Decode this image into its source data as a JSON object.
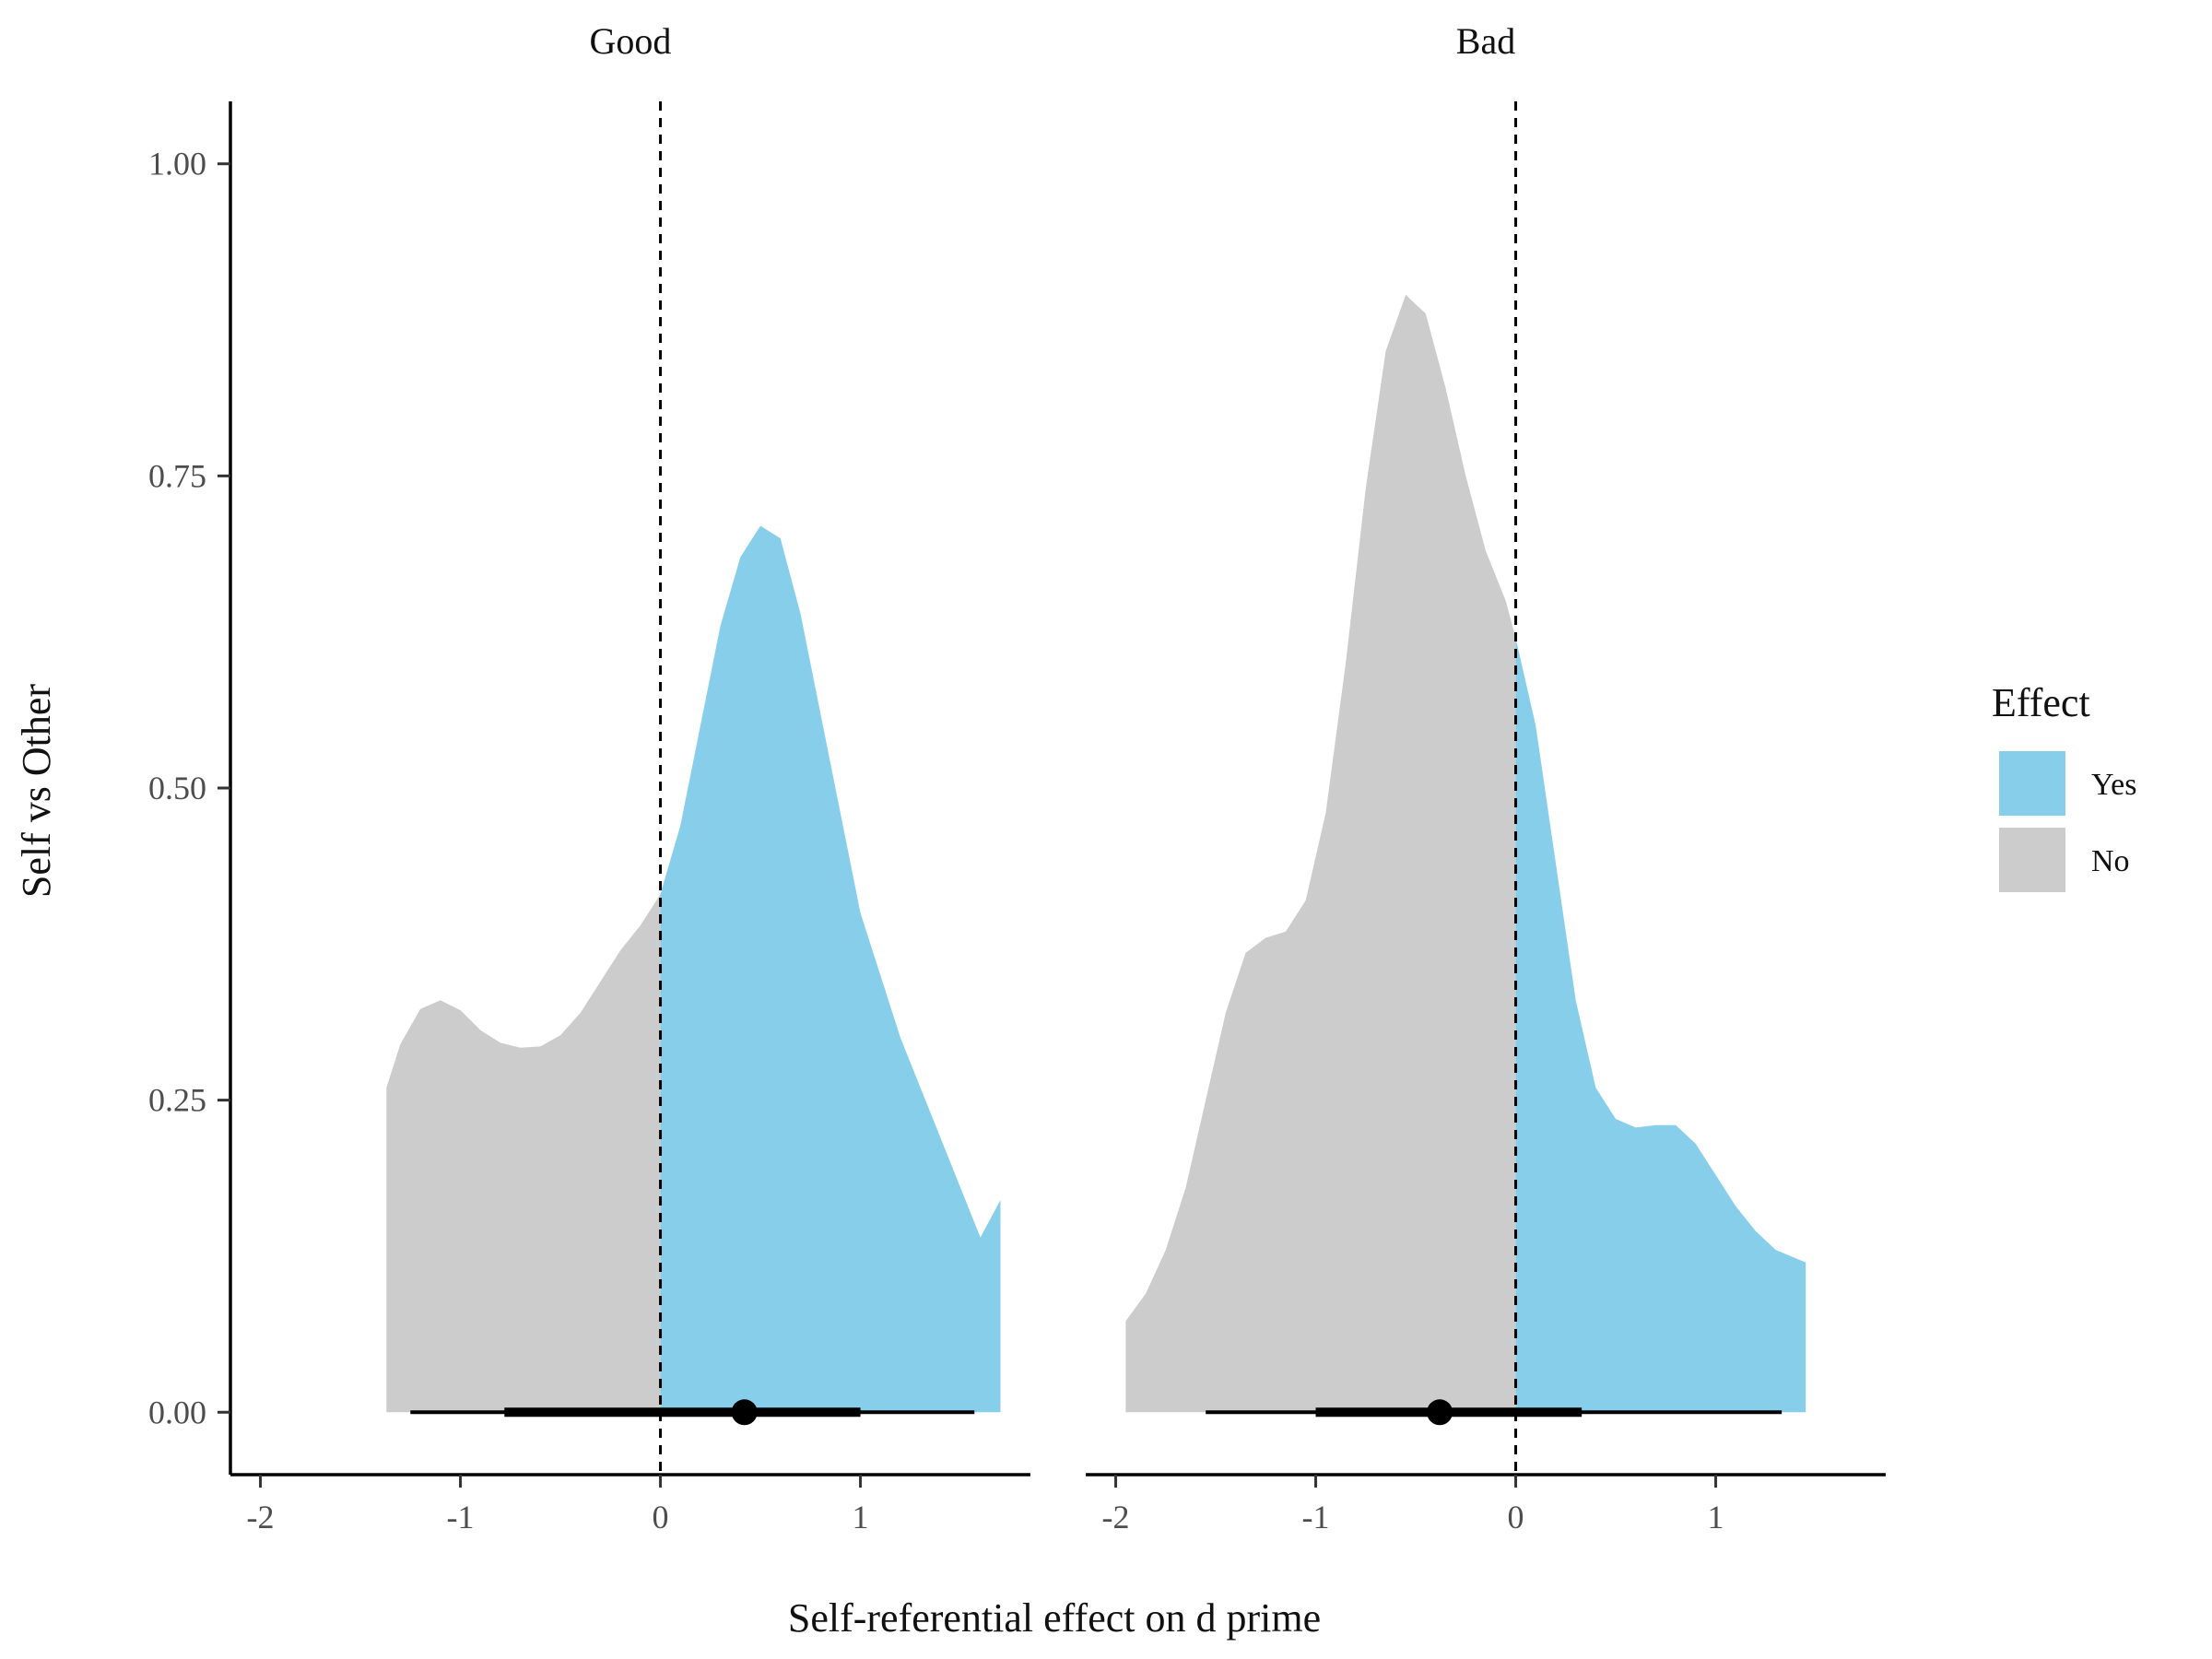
{
  "chart_data": {
    "type": "area",
    "xlabel": "Self-referential effect on d prime",
    "ylabel": "Self vs Other",
    "xlim": [
      -2.15,
      1.85
    ],
    "ylim": [
      -0.05,
      1.05
    ],
    "x_ticks": [
      -2,
      -1,
      0,
      1
    ],
    "x_tick_labels": [
      "-2",
      "-1",
      "0",
      "1"
    ],
    "y_ticks": [
      0,
      0.25,
      0.5,
      0.75,
      1.0
    ],
    "y_tick_labels": [
      "0.00",
      "0.25",
      "0.50",
      "0.75",
      "1.00"
    ],
    "reference_line_x": 0,
    "legend": {
      "title": "Effect",
      "position": "right",
      "items": [
        {
          "label": "Yes",
          "color": "#87CEEB"
        },
        {
          "label": "No",
          "color": "#CCCCCC"
        }
      ]
    },
    "fill_colors": {
      "Yes": "#87CEEB",
      "No": "#CCCCCC"
    },
    "panels": [
      {
        "title": "Good",
        "density": {
          "x": [
            -1.37,
            -1.3,
            -1.2,
            -1.1,
            -1.0,
            -0.9,
            -0.8,
            -0.7,
            -0.6,
            -0.5,
            -0.4,
            -0.3,
            -0.2,
            -0.1,
            0.0,
            0.1,
            0.2,
            0.3,
            0.4,
            0.5,
            0.6,
            0.7,
            0.8,
            0.9,
            1.0,
            1.1,
            1.2,
            1.3,
            1.4,
            1.5,
            1.6,
            1.7
          ],
          "y": [
            0.26,
            0.295,
            0.323,
            0.33,
            0.322,
            0.306,
            0.296,
            0.292,
            0.293,
            0.302,
            0.32,
            0.345,
            0.37,
            0.39,
            0.415,
            0.47,
            0.55,
            0.63,
            0.685,
            0.71,
            0.7,
            0.64,
            0.56,
            0.48,
            0.4,
            0.35,
            0.3,
            0.26,
            0.22,
            0.18,
            0.14,
            0.17
          ]
        },
        "point_estimate": 0.42,
        "interval_66": [
          -0.78,
          1.0
        ],
        "interval_95": [
          -1.25,
          1.57
        ]
      },
      {
        "title": "Bad",
        "density": {
          "x": [
            -1.95,
            -1.85,
            -1.75,
            -1.65,
            -1.55,
            -1.45,
            -1.35,
            -1.25,
            -1.15,
            -1.05,
            -0.95,
            -0.85,
            -0.75,
            -0.65,
            -0.55,
            -0.45,
            -0.35,
            -0.25,
            -0.15,
            -0.05,
            0.0,
            0.1,
            0.2,
            0.3,
            0.4,
            0.5,
            0.6,
            0.7,
            0.8,
            0.9,
            1.0,
            1.1,
            1.2,
            1.3,
            1.45
          ],
          "y": [
            0.073,
            0.095,
            0.13,
            0.18,
            0.25,
            0.32,
            0.368,
            0.38,
            0.385,
            0.41,
            0.48,
            0.6,
            0.74,
            0.85,
            0.895,
            0.88,
            0.82,
            0.75,
            0.69,
            0.65,
            0.62,
            0.55,
            0.44,
            0.33,
            0.26,
            0.235,
            0.228,
            0.23,
            0.23,
            0.215,
            0.19,
            0.165,
            0.145,
            0.13,
            0.12
          ]
        },
        "point_estimate": -0.38,
        "interval_66": [
          -1.0,
          0.33
        ],
        "interval_95": [
          -1.55,
          1.33
        ]
      }
    ]
  }
}
